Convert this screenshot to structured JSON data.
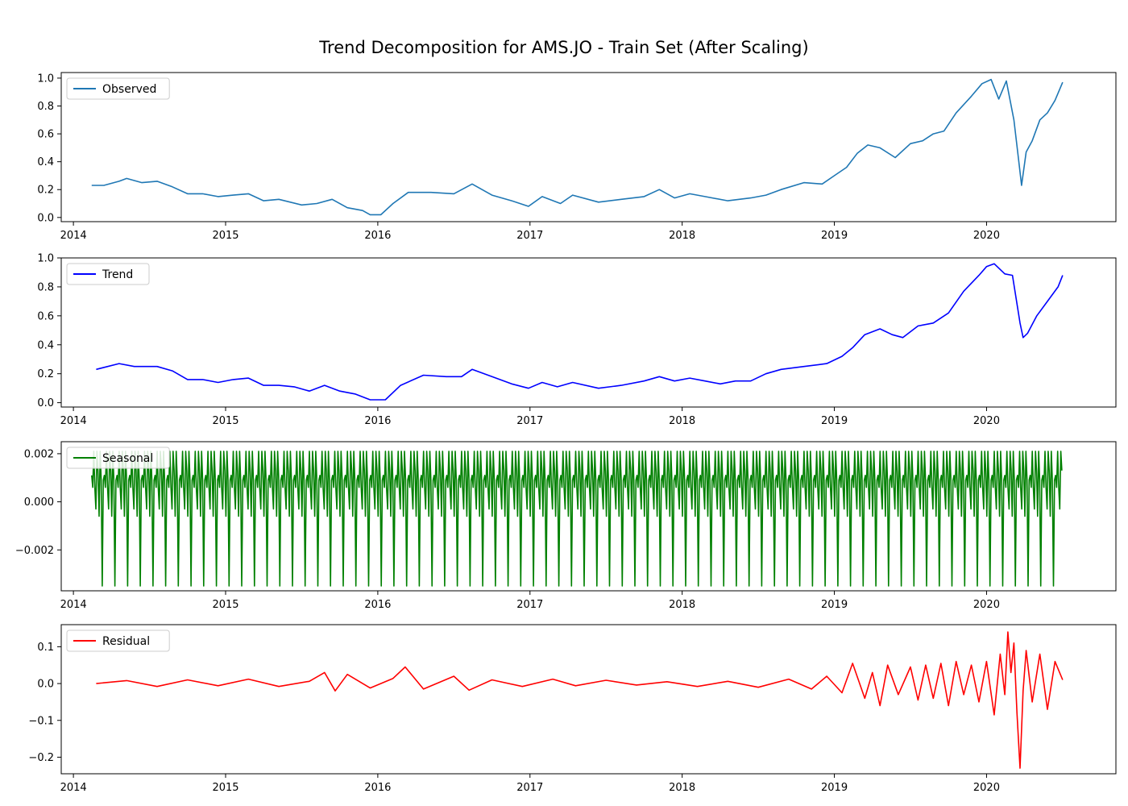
{
  "chart_data": {
    "type": "line",
    "title": "Trend Decomposition for AMS.JO - Train Set (After Scaling)",
    "x_tick_labels": [
      "2014",
      "2015",
      "2016",
      "2017",
      "2018",
      "2019",
      "2020"
    ],
    "panels": [
      {
        "name": "observed",
        "legend": "Observed",
        "color": "#1f77b4",
        "legend_loc": "upper left",
        "xlim": [
          2013.92,
          2020.85
        ],
        "ylim": [
          -0.03,
          1.04
        ],
        "yticks": [
          0.0,
          0.2,
          0.4,
          0.6,
          0.8,
          1.0
        ],
        "ytick_labels": [
          "0.0",
          "0.2",
          "0.4",
          "0.6",
          "0.8",
          "1.0"
        ],
        "x": [
          2014.12,
          2014.2,
          2014.3,
          2014.35,
          2014.45,
          2014.55,
          2014.65,
          2014.75,
          2014.85,
          2014.95,
          2015.05,
          2015.15,
          2015.25,
          2015.35,
          2015.5,
          2015.6,
          2015.7,
          2015.8,
          2015.9,
          2015.95,
          2016.02,
          2016.1,
          2016.2,
          2016.35,
          2016.5,
          2016.62,
          2016.75,
          2016.88,
          2016.99,
          2017.08,
          2017.2,
          2017.28,
          2017.45,
          2017.6,
          2017.75,
          2017.85,
          2017.95,
          2018.05,
          2018.15,
          2018.3,
          2018.45,
          2018.55,
          2018.65,
          2018.8,
          2018.92,
          2019.0,
          2019.08,
          2019.15,
          2019.22,
          2019.3,
          2019.4,
          2019.5,
          2019.58,
          2019.65,
          2019.72,
          2019.8,
          2019.9,
          2019.97,
          2020.03,
          2020.08,
          2020.13,
          2020.18,
          2020.21,
          2020.23,
          2020.26,
          2020.3,
          2020.35,
          2020.4,
          2020.45,
          2020.5
        ],
        "y": [
          0.23,
          0.23,
          0.26,
          0.28,
          0.25,
          0.26,
          0.22,
          0.17,
          0.17,
          0.15,
          0.16,
          0.17,
          0.12,
          0.13,
          0.09,
          0.1,
          0.13,
          0.07,
          0.05,
          0.02,
          0.02,
          0.1,
          0.18,
          0.18,
          0.17,
          0.24,
          0.16,
          0.12,
          0.08,
          0.15,
          0.1,
          0.16,
          0.11,
          0.13,
          0.15,
          0.2,
          0.14,
          0.17,
          0.15,
          0.12,
          0.14,
          0.16,
          0.2,
          0.25,
          0.24,
          0.3,
          0.36,
          0.46,
          0.52,
          0.5,
          0.43,
          0.53,
          0.55,
          0.6,
          0.62,
          0.75,
          0.87,
          0.96,
          0.99,
          0.85,
          0.98,
          0.7,
          0.42,
          0.23,
          0.47,
          0.55,
          0.7,
          0.75,
          0.84,
          0.97
        ]
      },
      {
        "name": "trend",
        "legend": "Trend",
        "color": "#0000ff",
        "legend_loc": "upper left",
        "xlim": [
          2013.92,
          2020.85
        ],
        "ylim": [
          -0.03,
          1.0
        ],
        "yticks": [
          0.0,
          0.2,
          0.4,
          0.6,
          0.8,
          1.0
        ],
        "ytick_labels": [
          "0.0",
          "0.2",
          "0.4",
          "0.6",
          "0.8",
          "1.0"
        ],
        "x": [
          2014.15,
          2014.3,
          2014.4,
          2014.55,
          2014.65,
          2014.75,
          2014.85,
          2014.95,
          2015.05,
          2015.15,
          2015.25,
          2015.35,
          2015.45,
          2015.55,
          2015.65,
          2015.75,
          2015.85,
          2015.95,
          2016.05,
          2016.15,
          2016.3,
          2016.45,
          2016.55,
          2016.62,
          2016.75,
          2016.88,
          2016.99,
          2017.08,
          2017.18,
          2017.28,
          2017.45,
          2017.6,
          2017.75,
          2017.85,
          2017.95,
          2018.05,
          2018.15,
          2018.25,
          2018.35,
          2018.45,
          2018.55,
          2018.65,
          2018.8,
          2018.95,
          2019.05,
          2019.12,
          2019.2,
          2019.3,
          2019.38,
          2019.45,
          2019.55,
          2019.65,
          2019.75,
          2019.85,
          2019.95,
          2020.0,
          2020.05,
          2020.12,
          2020.17,
          2020.22,
          2020.24,
          2020.27,
          2020.33,
          2020.4,
          2020.47,
          2020.5
        ],
        "y": [
          0.23,
          0.27,
          0.25,
          0.25,
          0.22,
          0.16,
          0.16,
          0.14,
          0.16,
          0.17,
          0.12,
          0.12,
          0.11,
          0.08,
          0.12,
          0.08,
          0.06,
          0.02,
          0.02,
          0.12,
          0.19,
          0.18,
          0.18,
          0.23,
          0.18,
          0.13,
          0.1,
          0.14,
          0.11,
          0.14,
          0.1,
          0.12,
          0.15,
          0.18,
          0.15,
          0.17,
          0.15,
          0.13,
          0.15,
          0.15,
          0.2,
          0.23,
          0.25,
          0.27,
          0.32,
          0.38,
          0.47,
          0.51,
          0.47,
          0.45,
          0.53,
          0.55,
          0.62,
          0.77,
          0.88,
          0.94,
          0.96,
          0.89,
          0.88,
          0.55,
          0.45,
          0.48,
          0.6,
          0.7,
          0.8,
          0.88
        ]
      },
      {
        "name": "seasonal",
        "legend": "Seasonal",
        "color": "#008000",
        "legend_loc": "upper left",
        "xlim": [
          2013.92,
          2020.85
        ],
        "ylim": [
          -0.0037,
          0.0025
        ],
        "yticks": [
          -0.002,
          0.0,
          0.002
        ],
        "ytick_labels": [
          "−0.002",
          "0.000",
          "0.002"
        ],
        "x_start": 2014.12,
        "x_end": 2020.5,
        "cycles_per_year": 12,
        "pattern": [
          0.0011,
          0.0006,
          0.0021,
          0.0006,
          -0.0003,
          0.0021,
          0.0013,
          -0.0006,
          0.0021,
          0.0009,
          -0.0035,
          0.0009
        ]
      },
      {
        "name": "residual",
        "legend": "Residual",
        "color": "#ff0000",
        "legend_loc": "upper left",
        "xlim": [
          2013.92,
          2020.85
        ],
        "ylim": [
          -0.245,
          0.16
        ],
        "yticks": [
          -0.2,
          -0.1,
          0.0,
          0.1
        ],
        "ytick_labels": [
          "−0.2",
          "−0.1",
          "0.0",
          "0.1"
        ],
        "x": [
          2014.15,
          2014.35,
          2014.55,
          2014.75,
          2014.95,
          2015.15,
          2015.35,
          2015.55,
          2015.65,
          2015.72,
          2015.8,
          2015.95,
          2016.1,
          2016.18,
          2016.3,
          2016.5,
          2016.6,
          2016.75,
          2016.95,
          2017.15,
          2017.3,
          2017.5,
          2017.7,
          2017.9,
          2018.1,
          2018.3,
          2018.5,
          2018.7,
          2018.85,
          2018.95,
          2019.05,
          2019.12,
          2019.2,
          2019.25,
          2019.3,
          2019.35,
          2019.42,
          2019.5,
          2019.55,
          2019.6,
          2019.65,
          2019.7,
          2019.75,
          2019.8,
          2019.85,
          2019.9,
          2019.95,
          2020.0,
          2020.05,
          2020.09,
          2020.12,
          2020.14,
          2020.16,
          2020.18,
          2020.2,
          2020.22,
          2020.24,
          2020.26,
          2020.3,
          2020.35,
          2020.4,
          2020.45,
          2020.5
        ],
        "y": [
          0.0,
          0.008,
          -0.008,
          0.01,
          -0.006,
          0.012,
          -0.008,
          0.006,
          0.03,
          -0.02,
          0.025,
          -0.012,
          0.014,
          0.045,
          -0.015,
          0.02,
          -0.018,
          0.01,
          -0.008,
          0.012,
          -0.006,
          0.009,
          -0.004,
          0.005,
          -0.008,
          0.006,
          -0.01,
          0.012,
          -0.015,
          0.02,
          -0.025,
          0.055,
          -0.04,
          0.03,
          -0.06,
          0.05,
          -0.03,
          0.045,
          -0.045,
          0.05,
          -0.04,
          0.055,
          -0.06,
          0.06,
          -0.03,
          0.05,
          -0.05,
          0.06,
          -0.085,
          0.08,
          -0.03,
          0.14,
          0.03,
          0.11,
          -0.08,
          -0.23,
          -0.02,
          0.09,
          -0.05,
          0.08,
          -0.07,
          0.06,
          0.01
        ]
      }
    ]
  }
}
